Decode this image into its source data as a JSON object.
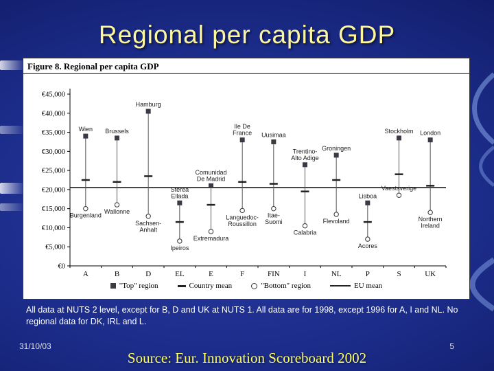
{
  "slide": {
    "title": "Regional per capita GDP",
    "caption": "All data at NUTS 2 level, except for B, D and UK at NUTS 1. All data are for 1998, except 1996 for A, I and NL. No regional data for DK, IRL and L.",
    "footer": {
      "date": "31/10/03",
      "page_number": "5",
      "source": "Source: Eur. Innovation Scoreboard 2002"
    }
  },
  "chart_data": {
    "type": "scatter",
    "subtype": "high-low range with top/mean/bottom markers",
    "title": "Figure 8. Regional per capita GDP",
    "ylim": [
      0,
      45000
    ],
    "ytick_step": 5000,
    "yticks": [
      {
        "v": 45000,
        "label": "€45,000"
      },
      {
        "v": 40000,
        "label": "€40,000"
      },
      {
        "v": 35000,
        "label": "€35,000"
      },
      {
        "v": 30000,
        "label": "€30,000"
      },
      {
        "v": 25000,
        "label": "€25,000"
      },
      {
        "v": 20000,
        "label": "€20,000"
      },
      {
        "v": 15000,
        "label": "€15,000"
      },
      {
        "v": 10000,
        "label": "€10,000"
      },
      {
        "v": 5000,
        "label": "€5,000"
      },
      {
        "v": 0,
        "label": "€0"
      }
    ],
    "categories": [
      "A",
      "B",
      "D",
      "EL",
      "E",
      "F",
      "FIN",
      "I",
      "NL",
      "P",
      "S",
      "UK"
    ],
    "series": [
      {
        "name": "\"Top\" region",
        "marker": "square",
        "values": [
          34000,
          33500,
          40500,
          16500,
          21000,
          33000,
          32500,
          26500,
          29000,
          16500,
          33500,
          33000
        ],
        "labels": [
          [
            "Wien"
          ],
          [
            "Brussels"
          ],
          [
            "Hamburg"
          ],
          [
            "Sterea",
            "Ellada"
          ],
          [
            "Comunidad",
            "De Madrid"
          ],
          [
            "Ile De",
            "France"
          ],
          [
            "Uusimaa"
          ],
          [
            "Trentino-",
            "Alto Adige"
          ],
          [
            "Groningen"
          ],
          [
            "Lisboa"
          ],
          [
            "Stockholm"
          ],
          [
            "London"
          ]
        ]
      },
      {
        "name": "Country mean",
        "marker": "dash",
        "values": [
          22500,
          22000,
          23500,
          11500,
          16000,
          22000,
          21500,
          19500,
          22500,
          11500,
          24000,
          21000
        ]
      },
      {
        "name": "\"Bottom\" region",
        "marker": "circle",
        "values": [
          15000,
          16000,
          13000,
          6500,
          9000,
          14500,
          15000,
          10500,
          13500,
          7000,
          18500,
          14000
        ],
        "labels": [
          [
            "Burgenland"
          ],
          [
            "Wallonne"
          ],
          [
            "Sachsen-",
            "Anhalt"
          ],
          [
            "Ipeiros"
          ],
          [
            "Extremadura"
          ],
          [
            "Languedoc-",
            "Roussillon"
          ],
          [
            "Itae-",
            "Suomi"
          ],
          [
            "Calabria"
          ],
          [
            "Flevoland"
          ],
          [
            "Acores"
          ],
          [
            "Vaestsverige"
          ],
          [
            "Northern",
            "Ireland"
          ]
        ],
        "label_side": [
          "below",
          "below",
          "below",
          "below",
          "below",
          "below",
          "below",
          "below",
          "below",
          "below",
          "above",
          "below"
        ]
      }
    ],
    "eu_mean": 20500,
    "legend": [
      {
        "marker": "square",
        "label": "\"Top\" region"
      },
      {
        "marker": "dash",
        "label": "Country mean"
      },
      {
        "marker": "circle",
        "label": "\"Bottom\" region"
      },
      {
        "marker": "line",
        "label": "EU mean"
      }
    ],
    "grid": false,
    "legend_position": "bottom"
  }
}
